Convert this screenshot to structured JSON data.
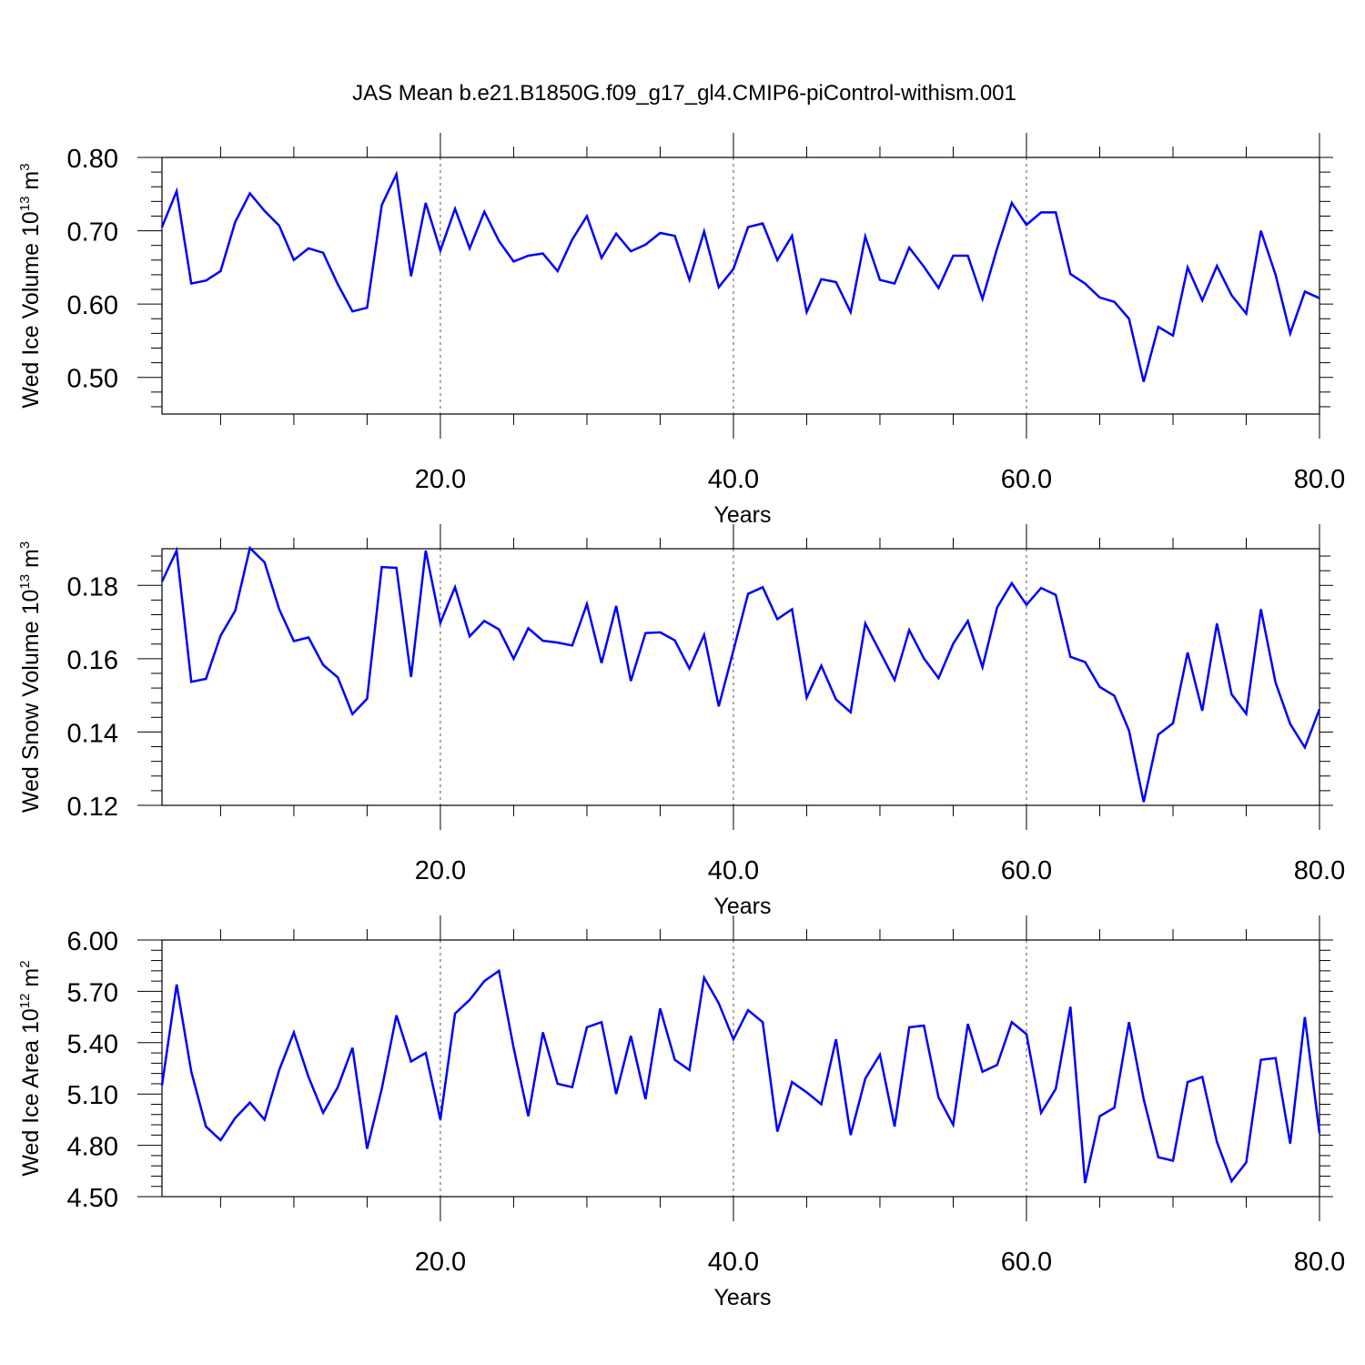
{
  "title": "JAS Mean b.e21.B1850G.f09_g17_gl4.CMIP6-piControl-withism.001",
  "line_color": "#0000ff",
  "chart_data": [
    {
      "type": "line",
      "ylabel": {
        "text": "Wed Ice Volume 10",
        "sup1": "13",
        "mid": " m",
        "sup2": "3"
      },
      "xlabel": "Years",
      "xlim": [
        1,
        80
      ],
      "ylim": [
        0.45,
        0.8
      ],
      "xticks": [
        20,
        40,
        60,
        80
      ],
      "xtick_labels": [
        "20.0",
        "40.0",
        "60.0",
        "80.0"
      ],
      "yticks": [
        0.5,
        0.6,
        0.7,
        0.8
      ],
      "ytick_labels": [
        "0.50",
        "0.60",
        "0.70",
        "0.80"
      ],
      "grid_x": [
        20,
        40,
        60
      ],
      "x": [
        1,
        2,
        3,
        4,
        5,
        6,
        7,
        8,
        9,
        10,
        11,
        12,
        13,
        14,
        15,
        16,
        17,
        18,
        19,
        20,
        21,
        22,
        23,
        24,
        25,
        26,
        27,
        28,
        29,
        30,
        31,
        32,
        33,
        34,
        35,
        36,
        37,
        38,
        39,
        40,
        41,
        42,
        43,
        44,
        45,
        46,
        47,
        48,
        49,
        50,
        51,
        52,
        53,
        54,
        55,
        56,
        57,
        58,
        59,
        60,
        61,
        62,
        63,
        64,
        65,
        66,
        67,
        68,
        69,
        70,
        71,
        72,
        73,
        74,
        75,
        76,
        77,
        78,
        79,
        80
      ],
      "y": [
        0.705,
        0.754,
        0.628,
        0.632,
        0.645,
        0.712,
        0.751,
        0.727,
        0.707,
        0.66,
        0.676,
        0.67,
        0.627,
        0.59,
        0.595,
        0.735,
        0.777,
        0.638,
        0.738,
        0.673,
        0.73,
        0.676,
        0.726,
        0.686,
        0.658,
        0.666,
        0.669,
        0.645,
        0.688,
        0.72,
        0.663,
        0.696,
        0.672,
        0.681,
        0.697,
        0.693,
        0.633,
        0.699,
        0.623,
        0.648,
        0.705,
        0.71,
        0.66,
        0.693,
        0.589,
        0.634,
        0.63,
        0.589,
        0.692,
        0.633,
        0.628,
        0.677,
        0.651,
        0.622,
        0.666,
        0.666,
        0.607,
        0.676,
        0.738,
        0.708,
        0.725,
        0.725,
        0.641,
        0.628,
        0.609,
        0.603,
        0.58,
        0.494,
        0.569,
        0.557,
        0.65,
        0.605,
        0.652,
        0.612,
        0.587,
        0.7,
        0.64,
        0.56,
        0.617,
        0.608
      ]
    },
    {
      "type": "line",
      "ylabel": {
        "text": "Wed Snow Volume 10",
        "sup1": "13",
        "mid": " m",
        "sup2": "3"
      },
      "xlabel": "Years",
      "xlim": [
        1,
        80
      ],
      "ylim": [
        0.12,
        0.19
      ],
      "xticks": [
        20,
        40,
        60,
        80
      ],
      "xtick_labels": [
        "20.0",
        "40.0",
        "60.0",
        "80.0"
      ],
      "yticks": [
        0.12,
        0.14,
        0.16,
        0.18
      ],
      "ytick_labels": [
        "0.12",
        "0.14",
        "0.16",
        "0.18"
      ],
      "grid_x": [
        20,
        40,
        60
      ],
      "x": [
        1,
        2,
        3,
        4,
        5,
        6,
        7,
        8,
        9,
        10,
        11,
        12,
        13,
        14,
        15,
        16,
        17,
        18,
        19,
        20,
        21,
        22,
        23,
        24,
        25,
        26,
        27,
        28,
        29,
        30,
        31,
        32,
        33,
        34,
        35,
        36,
        37,
        38,
        39,
        40,
        41,
        42,
        43,
        44,
        45,
        46,
        47,
        48,
        49,
        50,
        51,
        52,
        53,
        54,
        55,
        56,
        57,
        58,
        59,
        60,
        61,
        62,
        63,
        64,
        65,
        66,
        67,
        68,
        69,
        70,
        71,
        72,
        73,
        74,
        75,
        76,
        77,
        78,
        79,
        80
      ],
      "y": [
        0.181,
        0.1895,
        0.1537,
        0.1545,
        0.1663,
        0.1731,
        0.1902,
        0.1863,
        0.1735,
        0.1648,
        0.1658,
        0.1583,
        0.1549,
        0.1449,
        0.1491,
        0.185,
        0.1848,
        0.155,
        0.1895,
        0.1698,
        0.1795,
        0.1661,
        0.1703,
        0.168,
        0.16,
        0.1683,
        0.1649,
        0.1644,
        0.1636,
        0.1749,
        0.1588,
        0.1744,
        0.1539,
        0.167,
        0.1672,
        0.165,
        0.1573,
        0.1665,
        0.147,
        0.1622,
        0.1777,
        0.1795,
        0.1708,
        0.1735,
        0.1494,
        0.1581,
        0.1489,
        0.1454,
        0.1696,
        0.1619,
        0.1542,
        0.1678,
        0.1601,
        0.1547,
        0.1641,
        0.1703,
        0.1577,
        0.174,
        0.1806,
        0.1747,
        0.1793,
        0.1774,
        0.1605,
        0.1591,
        0.1523,
        0.1499,
        0.1404,
        0.1209,
        0.1393,
        0.1424,
        0.1617,
        0.1458,
        0.1696,
        0.1503,
        0.145,
        0.1735,
        0.1535,
        0.1422,
        0.1358,
        0.1462
      ]
    },
    {
      "type": "line",
      "ylabel": {
        "text": "Wed Ice Area 10",
        "sup1": "12",
        "mid": " m",
        "sup2": "2"
      },
      "xlabel": "Years",
      "xlim": [
        1,
        80
      ],
      "ylim": [
        4.5,
        6.0
      ],
      "xticks": [
        20,
        40,
        60,
        80
      ],
      "xtick_labels": [
        "20.0",
        "40.0",
        "60.0",
        "80.0"
      ],
      "yticks": [
        4.5,
        4.8,
        5.1,
        5.4,
        5.7,
        6.0
      ],
      "ytick_labels": [
        "4.50",
        "4.80",
        "5.10",
        "5.40",
        "5.70",
        "6.00"
      ],
      "grid_x": [
        20,
        40,
        60
      ],
      "x": [
        1,
        2,
        3,
        4,
        5,
        6,
        7,
        8,
        9,
        10,
        11,
        12,
        13,
        14,
        15,
        16,
        17,
        18,
        19,
        20,
        21,
        22,
        23,
        24,
        25,
        26,
        27,
        28,
        29,
        30,
        31,
        32,
        33,
        34,
        35,
        36,
        37,
        38,
        39,
        40,
        41,
        42,
        43,
        44,
        45,
        46,
        47,
        48,
        49,
        50,
        51,
        52,
        53,
        54,
        55,
        56,
        57,
        58,
        59,
        60,
        61,
        62,
        63,
        64,
        65,
        66,
        67,
        68,
        69,
        70,
        71,
        72,
        73,
        74,
        75,
        76,
        77,
        78,
        79,
        80
      ],
      "y": [
        5.15,
        5.74,
        5.23,
        4.91,
        4.83,
        4.96,
        5.05,
        4.95,
        5.24,
        5.46,
        5.2,
        4.99,
        5.14,
        5.37,
        4.78,
        5.13,
        5.56,
        5.29,
        5.34,
        4.95,
        5.57,
        5.65,
        5.76,
        5.82,
        5.37,
        4.97,
        5.46,
        5.16,
        5.14,
        5.49,
        5.52,
        5.1,
        5.44,
        5.07,
        5.6,
        5.3,
        5.24,
        5.78,
        5.63,
        5.42,
        5.59,
        5.52,
        4.88,
        5.17,
        5.11,
        5.04,
        5.42,
        4.86,
        5.19,
        5.33,
        4.91,
        5.49,
        5.5,
        5.08,
        4.92,
        5.51,
        5.23,
        5.27,
        5.52,
        5.45,
        4.99,
        5.13,
        5.61,
        4.58,
        4.97,
        5.02,
        5.52,
        5.07,
        4.73,
        4.71,
        5.17,
        5.2,
        4.82,
        4.59,
        4.7,
        5.3,
        5.31,
        4.81,
        5.55,
        4.87
      ]
    }
  ]
}
